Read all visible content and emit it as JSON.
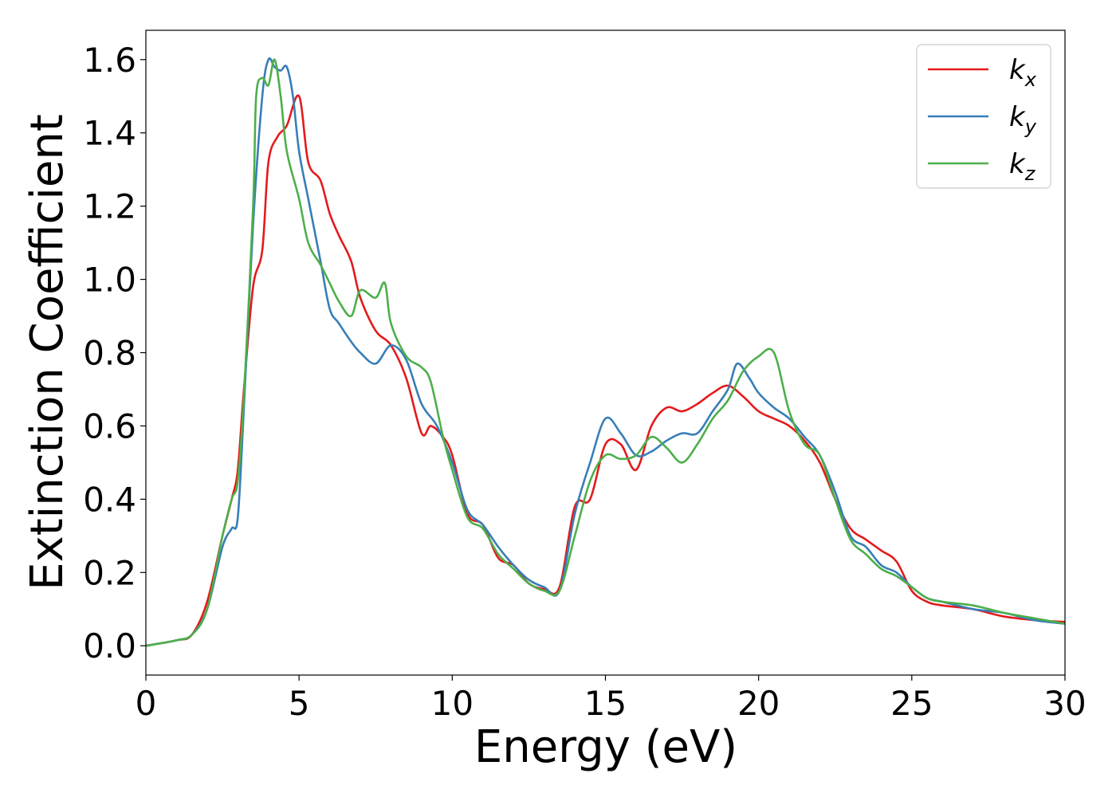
{
  "chart_data": {
    "type": "line",
    "title": "",
    "xlabel": "Energy (eV)",
    "ylabel": "Extinction Coefficient",
    "xlim": [
      0,
      30
    ],
    "ylim": [
      -0.08,
      1.68
    ],
    "xticks": [
      0,
      5,
      10,
      15,
      20,
      25,
      30
    ],
    "yticks": [
      0.0,
      0.2,
      0.4,
      0.6,
      0.8,
      1.0,
      1.2,
      1.4,
      1.6
    ],
    "xtick_labels": [
      "0",
      "5",
      "10",
      "15",
      "20",
      "25",
      "30"
    ],
    "ytick_labels": [
      "0.0",
      "0.2",
      "0.4",
      "0.6",
      "0.8",
      "1.0",
      "1.2",
      "1.4",
      "1.6"
    ],
    "grid": false,
    "legend_position": "top-right",
    "series": [
      {
        "name": "k",
        "subscript": "x",
        "color": "#e41a1c",
        "x": [
          0,
          1,
          1.5,
          2,
          2.5,
          2.8,
          3,
          3.2,
          3.5,
          3.8,
          4.0,
          4.3,
          4.6,
          5.0,
          5.3,
          5.7,
          6.0,
          6.3,
          6.7,
          7.0,
          7.5,
          8.0,
          8.5,
          9.0,
          9.3,
          9.7,
          10,
          10.5,
          11,
          11.5,
          12,
          12.5,
          13,
          13.5,
          14,
          14.5,
          15,
          15.5,
          16,
          16.5,
          17,
          17.5,
          18,
          18.5,
          19,
          19.5,
          20,
          20.5,
          21,
          21.5,
          22,
          22.5,
          23,
          23.5,
          24,
          24.5,
          25,
          25.5,
          26,
          27,
          28,
          29,
          30
        ],
        "y": [
          0.0,
          0.015,
          0.03,
          0.12,
          0.3,
          0.4,
          0.48,
          0.7,
          0.98,
          1.08,
          1.32,
          1.39,
          1.42,
          1.5,
          1.32,
          1.27,
          1.18,
          1.12,
          1.05,
          0.95,
          0.86,
          0.82,
          0.73,
          0.58,
          0.6,
          0.57,
          0.52,
          0.36,
          0.33,
          0.24,
          0.22,
          0.17,
          0.155,
          0.16,
          0.38,
          0.4,
          0.55,
          0.55,
          0.48,
          0.6,
          0.65,
          0.64,
          0.66,
          0.69,
          0.71,
          0.68,
          0.64,
          0.62,
          0.6,
          0.56,
          0.5,
          0.4,
          0.32,
          0.29,
          0.26,
          0.23,
          0.15,
          0.12,
          0.11,
          0.1,
          0.08,
          0.07,
          0.065
        ]
      },
      {
        "name": "k",
        "subscript": "y",
        "color": "#377eb8",
        "x": [
          0,
          1,
          1.5,
          2,
          2.5,
          2.8,
          3,
          3.2,
          3.5,
          3.8,
          4.0,
          4.2,
          4.4,
          4.6,
          4.8,
          5.0,
          5.3,
          5.7,
          6.0,
          6.3,
          6.7,
          7.0,
          7.5,
          8.0,
          8.5,
          9.0,
          9.5,
          10,
          10.5,
          11,
          11.5,
          12,
          12.5,
          13,
          13.5,
          14,
          14.5,
          15,
          15.5,
          16,
          16.5,
          17,
          17.5,
          18,
          18.5,
          19,
          19.3,
          19.7,
          20,
          20.5,
          21,
          21.5,
          22,
          22.5,
          23,
          23.5,
          24,
          24.5,
          25,
          25.5,
          26,
          27,
          28,
          29,
          30
        ],
        "y": [
          0.0,
          0.015,
          0.03,
          0.1,
          0.27,
          0.32,
          0.35,
          0.65,
          1.15,
          1.5,
          1.6,
          1.58,
          1.57,
          1.58,
          1.5,
          1.35,
          1.22,
          1.05,
          0.92,
          0.88,
          0.83,
          0.8,
          0.77,
          0.82,
          0.78,
          0.66,
          0.6,
          0.5,
          0.37,
          0.33,
          0.27,
          0.22,
          0.18,
          0.16,
          0.15,
          0.36,
          0.5,
          0.62,
          0.58,
          0.52,
          0.53,
          0.56,
          0.58,
          0.58,
          0.64,
          0.7,
          0.77,
          0.73,
          0.69,
          0.65,
          0.62,
          0.57,
          0.52,
          0.42,
          0.3,
          0.27,
          0.22,
          0.2,
          0.16,
          0.13,
          0.12,
          0.1,
          0.09,
          0.07,
          0.06
        ]
      },
      {
        "name": "k",
        "subscript": "z",
        "color": "#4daf4a",
        "x": [
          0,
          1,
          1.5,
          2,
          2.5,
          2.8,
          3,
          3.2,
          3.5,
          3.6,
          3.8,
          4.0,
          4.2,
          4.4,
          4.6,
          5.0,
          5.3,
          5.7,
          6.0,
          6.3,
          6.7,
          7.0,
          7.5,
          7.8,
          8.0,
          8.5,
          9.0,
          9.3,
          9.7,
          10,
          10.5,
          11,
          11.5,
          12,
          12.5,
          13,
          13.5,
          14,
          14.5,
          15,
          15.5,
          16,
          16.5,
          17,
          17.5,
          18,
          18.5,
          19,
          19.5,
          20,
          20.5,
          21,
          21.5,
          22,
          22.5,
          23,
          23.5,
          24,
          24.5,
          25,
          25.5,
          26,
          27,
          28,
          29,
          30
        ],
        "y": [
          0.0,
          0.015,
          0.03,
          0.1,
          0.3,
          0.4,
          0.45,
          0.68,
          1.2,
          1.5,
          1.55,
          1.53,
          1.6,
          1.5,
          1.35,
          1.22,
          1.1,
          1.04,
          0.99,
          0.94,
          0.9,
          0.97,
          0.95,
          0.99,
          0.88,
          0.79,
          0.76,
          0.72,
          0.57,
          0.48,
          0.35,
          0.32,
          0.25,
          0.21,
          0.17,
          0.15,
          0.15,
          0.3,
          0.45,
          0.52,
          0.51,
          0.52,
          0.57,
          0.54,
          0.5,
          0.55,
          0.62,
          0.67,
          0.75,
          0.79,
          0.8,
          0.64,
          0.55,
          0.52,
          0.4,
          0.29,
          0.25,
          0.21,
          0.19,
          0.16,
          0.13,
          0.12,
          0.11,
          0.09,
          0.075,
          0.06
        ]
      }
    ]
  }
}
